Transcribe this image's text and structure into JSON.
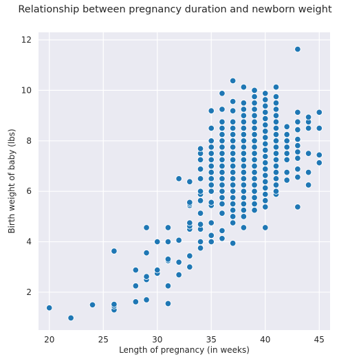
{
  "chart_data": {
    "type": "scatter",
    "title": "Relationship between pregnancy duration and newborn weight",
    "xlabel": "Length of pregnancy (in weeks)",
    "ylabel": "Birth weight of baby (lbs)",
    "xlim": [
      19,
      46
    ],
    "ylim": [
      0.5,
      12.3
    ],
    "xticks": [
      20,
      25,
      30,
      35,
      40,
      45
    ],
    "yticks": [
      2,
      4,
      6,
      8,
      10,
      12
    ],
    "grid": true,
    "series": [
      {
        "color": "#1f77b4",
        "points": [
          [
            20,
            1.38
          ],
          [
            22,
            0.98
          ],
          [
            24,
            1.5
          ],
          [
            26,
            1.3
          ],
          [
            26,
            1.45
          ],
          [
            26,
            1.52
          ],
          [
            26,
            3.63
          ],
          [
            28,
            1.62
          ],
          [
            28,
            2.25
          ],
          [
            28,
            2.88
          ],
          [
            29,
            1.7
          ],
          [
            29,
            2.5
          ],
          [
            29,
            2.62
          ],
          [
            29,
            3.56
          ],
          [
            29,
            4.56
          ],
          [
            30,
            2.75
          ],
          [
            30,
            2.88
          ],
          [
            30,
            4.0
          ],
          [
            31,
            1.55
          ],
          [
            31,
            2.25
          ],
          [
            31,
            3.25
          ],
          [
            31,
            3.31
          ],
          [
            31,
            4.0
          ],
          [
            31,
            4.56
          ],
          [
            32,
            2.69
          ],
          [
            32,
            3.19
          ],
          [
            32,
            4.06
          ],
          [
            32,
            6.5
          ],
          [
            33,
            3.0
          ],
          [
            33,
            3.44
          ],
          [
            33,
            4.5
          ],
          [
            33,
            4.62
          ],
          [
            33,
            4.75
          ],
          [
            33,
            5.44
          ],
          [
            33,
            5.5
          ],
          [
            33,
            5.56
          ],
          [
            33,
            6.38
          ],
          [
            34,
            3.75
          ],
          [
            34,
            4.0
          ],
          [
            34,
            4.5
          ],
          [
            34,
            4.69
          ],
          [
            34,
            5.13
          ],
          [
            34,
            5.63
          ],
          [
            34,
            5.88
          ],
          [
            34,
            6.0
          ],
          [
            34,
            6.5
          ],
          [
            34,
            6.88
          ],
          [
            34,
            7.25
          ],
          [
            34,
            7.5
          ],
          [
            34,
            7.69
          ],
          [
            35,
            4.0
          ],
          [
            35,
            4.25
          ],
          [
            35,
            4.75
          ],
          [
            35,
            5.44
          ],
          [
            35,
            5.56
          ],
          [
            35,
            6.0
          ],
          [
            35,
            6.25
          ],
          [
            35,
            6.5
          ],
          [
            35,
            6.75
          ],
          [
            35,
            7.0
          ],
          [
            35,
            7.25
          ],
          [
            35,
            7.5
          ],
          [
            35,
            7.75
          ],
          [
            35,
            8.0
          ],
          [
            35,
            8.5
          ],
          [
            35,
            9.19
          ],
          [
            36,
            4.13
          ],
          [
            36,
            4.44
          ],
          [
            36,
            5.13
          ],
          [
            36,
            5.5
          ],
          [
            36,
            5.75
          ],
          [
            36,
            6.0
          ],
          [
            36,
            6.25
          ],
          [
            36,
            6.5
          ],
          [
            36,
            6.75
          ],
          [
            36,
            7.0
          ],
          [
            36,
            7.25
          ],
          [
            36,
            7.5
          ],
          [
            36,
            7.75
          ],
          [
            36,
            8.0
          ],
          [
            36,
            8.25
          ],
          [
            36,
            8.5
          ],
          [
            36,
            8.75
          ],
          [
            36,
            9.25
          ],
          [
            36,
            9.88
          ],
          [
            37,
            3.94
          ],
          [
            37,
            4.75
          ],
          [
            37,
            5.0
          ],
          [
            37,
            5.25
          ],
          [
            37,
            5.5
          ],
          [
            37,
            5.75
          ],
          [
            37,
            6.0
          ],
          [
            37,
            6.25
          ],
          [
            37,
            6.5
          ],
          [
            37,
            6.75
          ],
          [
            37,
            7.0
          ],
          [
            37,
            7.25
          ],
          [
            37,
            7.5
          ],
          [
            37,
            7.75
          ],
          [
            37,
            8.0
          ],
          [
            37,
            8.25
          ],
          [
            37,
            8.5
          ],
          [
            37,
            8.75
          ],
          [
            37,
            9.19
          ],
          [
            37,
            9.56
          ],
          [
            37,
            10.38
          ],
          [
            38,
            4.56
          ],
          [
            38,
            5.0
          ],
          [
            38,
            5.25
          ],
          [
            38,
            5.5
          ],
          [
            38,
            5.75
          ],
          [
            38,
            6.0
          ],
          [
            38,
            6.25
          ],
          [
            38,
            6.5
          ],
          [
            38,
            6.75
          ],
          [
            38,
            7.0
          ],
          [
            38,
            7.25
          ],
          [
            38,
            7.5
          ],
          [
            38,
            7.75
          ],
          [
            38,
            8.0
          ],
          [
            38,
            8.25
          ],
          [
            38,
            8.5
          ],
          [
            38,
            8.75
          ],
          [
            38,
            9.0
          ],
          [
            38,
            9.25
          ],
          [
            38,
            9.5
          ],
          [
            38,
            10.13
          ],
          [
            39,
            5.25
          ],
          [
            39,
            5.5
          ],
          [
            39,
            5.75
          ],
          [
            39,
            6.0
          ],
          [
            39,
            6.25
          ],
          [
            39,
            6.5
          ],
          [
            39,
            6.75
          ],
          [
            39,
            7.0
          ],
          [
            39,
            7.25
          ],
          [
            39,
            7.5
          ],
          [
            39,
            7.75
          ],
          [
            39,
            8.0
          ],
          [
            39,
            8.25
          ],
          [
            39,
            8.5
          ],
          [
            39,
            8.75
          ],
          [
            39,
            9.0
          ],
          [
            39,
            9.25
          ],
          [
            39,
            9.5
          ],
          [
            39,
            9.75
          ],
          [
            39,
            10.0
          ],
          [
            40,
            4.56
          ],
          [
            40,
            5.38
          ],
          [
            40,
            5.63
          ],
          [
            40,
            5.88
          ],
          [
            40,
            6.13
          ],
          [
            40,
            6.38
          ],
          [
            40,
            6.63
          ],
          [
            40,
            6.88
          ],
          [
            40,
            7.13
          ],
          [
            40,
            7.38
          ],
          [
            40,
            7.63
          ],
          [
            40,
            7.88
          ],
          [
            40,
            8.13
          ],
          [
            40,
            8.38
          ],
          [
            40,
            8.63
          ],
          [
            40,
            8.88
          ],
          [
            40,
            9.13
          ],
          [
            40,
            9.38
          ],
          [
            40,
            9.63
          ],
          [
            40,
            9.88
          ],
          [
            41,
            5.88
          ],
          [
            41,
            6.0
          ],
          [
            41,
            6.25
          ],
          [
            41,
            6.5
          ],
          [
            41,
            6.75
          ],
          [
            41,
            7.0
          ],
          [
            41,
            7.25
          ],
          [
            41,
            7.5
          ],
          [
            41,
            7.75
          ],
          [
            41,
            8.0
          ],
          [
            41,
            8.25
          ],
          [
            41,
            8.5
          ],
          [
            41,
            8.75
          ],
          [
            41,
            9.0
          ],
          [
            41,
            9.25
          ],
          [
            41,
            9.5
          ],
          [
            41,
            9.75
          ],
          [
            41,
            10.13
          ],
          [
            42,
            6.44
          ],
          [
            42,
            6.75
          ],
          [
            42,
            7.25
          ],
          [
            42,
            7.5
          ],
          [
            42,
            7.75
          ],
          [
            42,
            8.0
          ],
          [
            42,
            8.25
          ],
          [
            42,
            8.56
          ],
          [
            43,
            5.38
          ],
          [
            43,
            6.56
          ],
          [
            43,
            6.88
          ],
          [
            43,
            7.31
          ],
          [
            43,
            7.56
          ],
          [
            43,
            7.81
          ],
          [
            43,
            8.06
          ],
          [
            43,
            8.44
          ],
          [
            43,
            8.75
          ],
          [
            43,
            9.13
          ],
          [
            43,
            11.63
          ],
          [
            44,
            6.25
          ],
          [
            44,
            6.75
          ],
          [
            44,
            7.5
          ],
          [
            44,
            8.5
          ],
          [
            44,
            8.75
          ],
          [
            44,
            8.94
          ],
          [
            45,
            7.13
          ],
          [
            45,
            7.44
          ],
          [
            45,
            8.5
          ],
          [
            45,
            9.13
          ]
        ]
      }
    ]
  }
}
